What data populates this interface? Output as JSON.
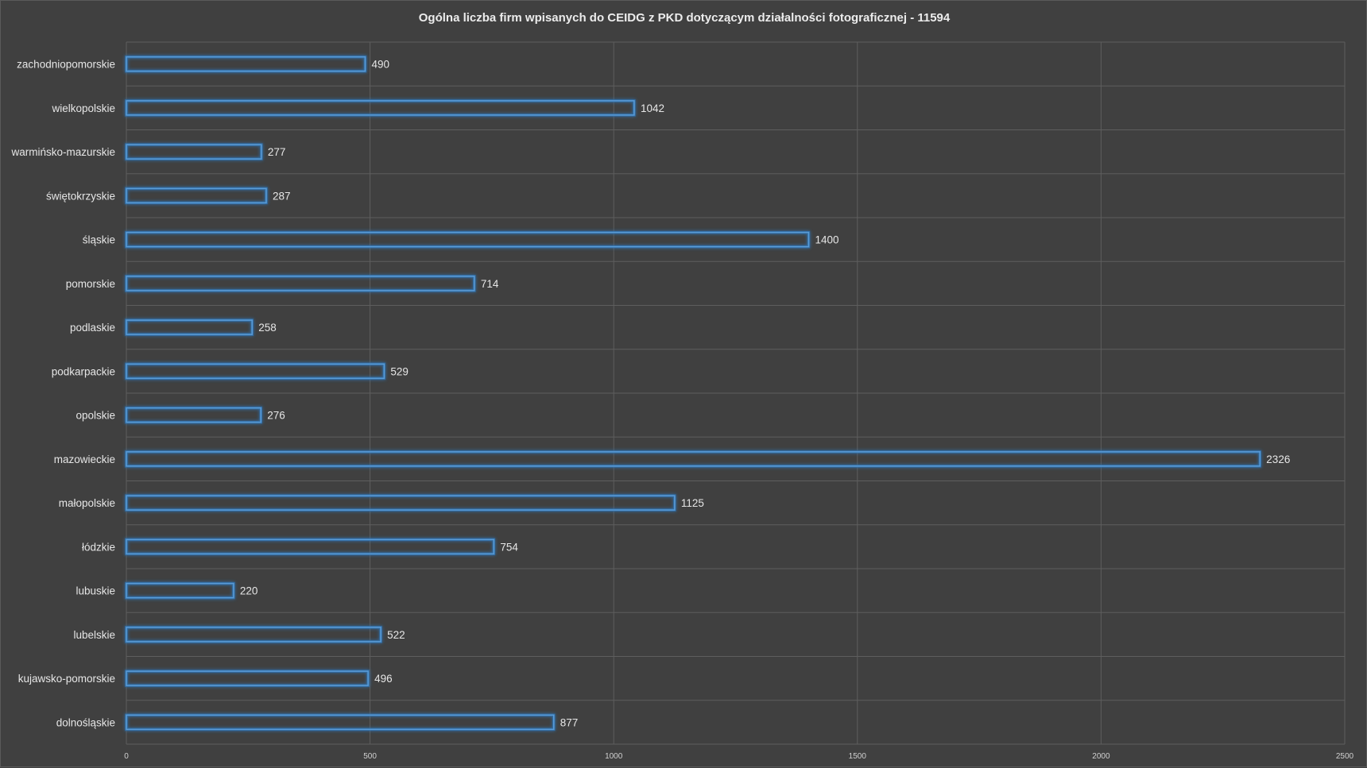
{
  "chart_data": {
    "type": "bar",
    "orientation": "horizontal",
    "title": "Ogólna liczba firm wpisanych do CEIDG z PKD dotyczącym działalności fotograficznej - 11594",
    "categories": [
      "zachodniopomorskie",
      "wielkopolskie",
      "warmińsko-mazurskie",
      "świętokrzyskie",
      "śląskie",
      "pomorskie",
      "podlaskie",
      "podkarpackie",
      "opolskie",
      "mazowieckie",
      "małopolskie",
      "łódzkie",
      "lubuskie",
      "lubelskie",
      "kujawsko-pomorskie",
      "dolnośląskie"
    ],
    "values": [
      490,
      1042,
      277,
      287,
      1400,
      714,
      258,
      529,
      276,
      2326,
      1125,
      754,
      220,
      522,
      496,
      877
    ],
    "xlim": [
      0,
      2500
    ],
    "xticks": [
      0,
      500,
      1000,
      1500,
      2000,
      2500
    ],
    "grid": true,
    "legend": "none",
    "colors": {
      "background": "#404040",
      "bar_outline": "#5b9bd5",
      "bar_glow": "#2e75b6",
      "grid": "#5e5e5e",
      "text": "#e6e6e6"
    }
  }
}
